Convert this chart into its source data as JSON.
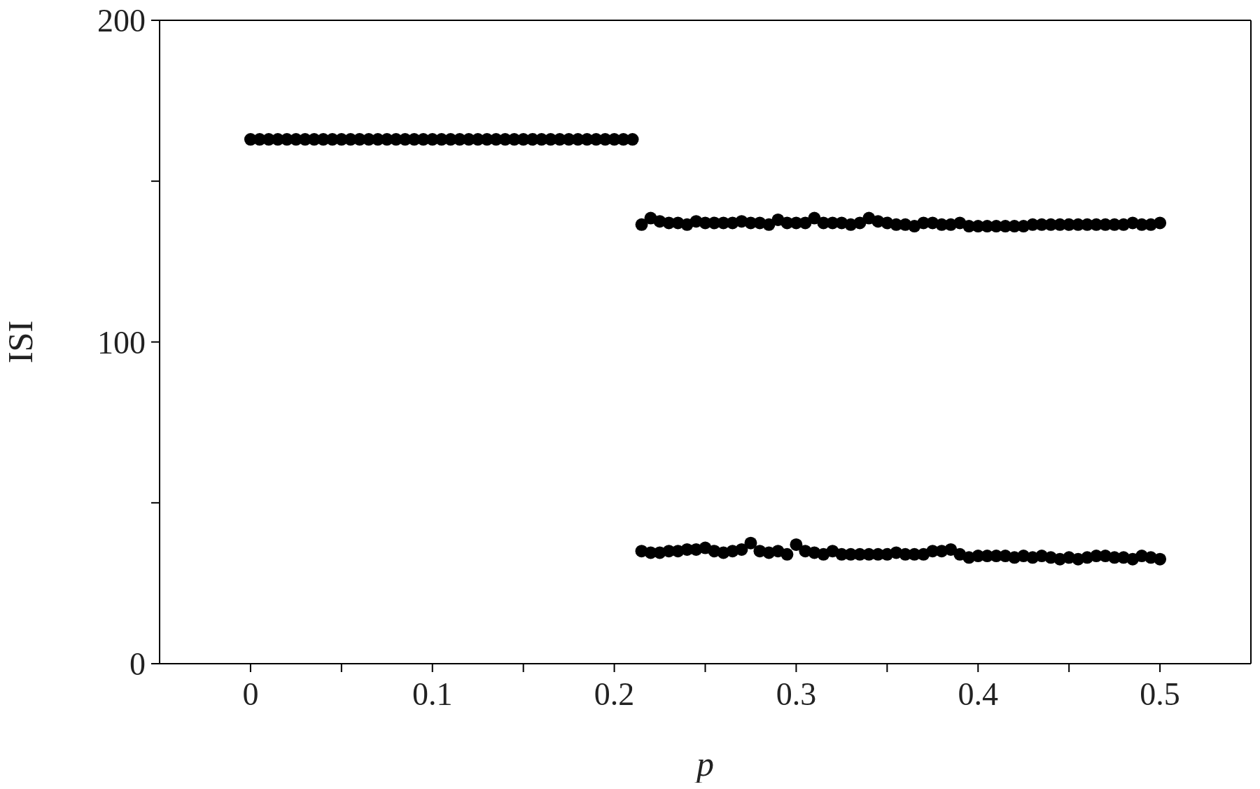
{
  "chart_data": {
    "type": "scatter",
    "xlabel": "p",
    "ylabel": "ISI",
    "xlim": [
      -0.05,
      0.55
    ],
    "ylim": [
      0,
      200
    ],
    "xticks": [
      0,
      {
        "value": 0.05,
        "label": null
      },
      0.1,
      {
        "value": 0.15,
        "label": null
      },
      0.2,
      {
        "value": 0.25,
        "label": null
      },
      0.3,
      {
        "value": 0.35,
        "label": null
      },
      0.4,
      {
        "value": 0.45,
        "label": null
      },
      0.5
    ],
    "yticks": [
      0,
      {
        "value": 50,
        "label": null
      },
      100,
      {
        "value": 150,
        "label": null
      },
      200
    ],
    "marker": "circle",
    "series": [
      {
        "color": "#000000",
        "x": [
          0,
          0.005,
          0.01,
          0.015,
          0.02,
          0.025,
          0.03,
          0.035,
          0.04,
          0.045,
          0.05,
          0.055,
          0.06,
          0.065,
          0.07,
          0.075,
          0.08,
          0.085,
          0.09,
          0.095,
          0.1,
          0.105,
          0.11,
          0.115,
          0.12,
          0.125,
          0.13,
          0.135,
          0.14,
          0.145,
          0.15,
          0.155,
          0.16,
          0.165,
          0.17,
          0.175,
          0.18,
          0.185,
          0.19,
          0.195,
          0.2,
          0.205,
          0.21
        ],
        "values": [
          163,
          163,
          163,
          163,
          163,
          163,
          163,
          163,
          163,
          163,
          163,
          163,
          163,
          163,
          163,
          163,
          163,
          163,
          163,
          163,
          163,
          163,
          163,
          163,
          163,
          163,
          163,
          163,
          163,
          163,
          163,
          163,
          163,
          163,
          163,
          163,
          163,
          163,
          163,
          163,
          163,
          163,
          163
        ]
      },
      {
        "color": "#000000",
        "x": [
          0.215,
          0.22,
          0.225,
          0.23,
          0.235,
          0.24,
          0.245,
          0.25,
          0.255,
          0.26,
          0.265,
          0.27,
          0.275,
          0.28,
          0.285,
          0.29,
          0.295,
          0.3,
          0.305,
          0.31,
          0.315,
          0.32,
          0.325,
          0.33,
          0.335,
          0.34,
          0.345,
          0.35,
          0.355,
          0.36,
          0.365,
          0.37,
          0.375,
          0.38,
          0.385,
          0.39,
          0.395,
          0.4,
          0.405,
          0.41,
          0.415,
          0.42,
          0.425,
          0.43,
          0.435,
          0.44,
          0.445,
          0.45,
          0.455,
          0.46,
          0.465,
          0.47,
          0.475,
          0.48,
          0.485,
          0.49,
          0.495,
          0.5
        ],
        "values": [
          136.5,
          138.5,
          137.5,
          137,
          137,
          136.5,
          137.5,
          137,
          137,
          137,
          137,
          137.5,
          137,
          137,
          136.5,
          138,
          137,
          137,
          137,
          138.5,
          137,
          137,
          137,
          136.5,
          137,
          138.5,
          137.5,
          137,
          136.5,
          136.5,
          136,
          137,
          137,
          136.5,
          136.5,
          137,
          136,
          136,
          136,
          136,
          136,
          136,
          136,
          136.5,
          136.5,
          136.5,
          136.5,
          136.5,
          136.5,
          136.5,
          136.5,
          136.5,
          136.5,
          136.5,
          137,
          136.5,
          136.5,
          137
        ]
      },
      {
        "color": "#000000",
        "x": [
          0.215,
          0.22,
          0.225,
          0.23,
          0.235,
          0.24,
          0.245,
          0.25,
          0.255,
          0.26,
          0.265,
          0.27,
          0.275,
          0.28,
          0.285,
          0.29,
          0.295,
          0.3,
          0.305,
          0.31,
          0.315,
          0.32,
          0.325,
          0.33,
          0.335,
          0.34,
          0.345,
          0.35,
          0.355,
          0.36,
          0.365,
          0.37,
          0.375,
          0.38,
          0.385,
          0.39,
          0.395,
          0.4,
          0.405,
          0.41,
          0.415,
          0.42,
          0.425,
          0.43,
          0.435,
          0.44,
          0.445,
          0.45,
          0.455,
          0.46,
          0.465,
          0.47,
          0.475,
          0.48,
          0.485,
          0.49,
          0.495,
          0.5
        ],
        "values": [
          35,
          34.5,
          34.5,
          35,
          35,
          35.5,
          35.5,
          36,
          35,
          34.5,
          35,
          35.5,
          37.5,
          35,
          34.5,
          35,
          34,
          37,
          35,
          34.5,
          34,
          35,
          34,
          34,
          34,
          34,
          34,
          34,
          34.5,
          34,
          34,
          34,
          35,
          35,
          35.5,
          34,
          33,
          33.5,
          33.5,
          33.5,
          33.5,
          33,
          33.5,
          33,
          33.5,
          33,
          32.5,
          33,
          32.5,
          33,
          33.5,
          33.5,
          33,
          33,
          32.5,
          33.5,
          33,
          32.5
        ]
      }
    ]
  }
}
